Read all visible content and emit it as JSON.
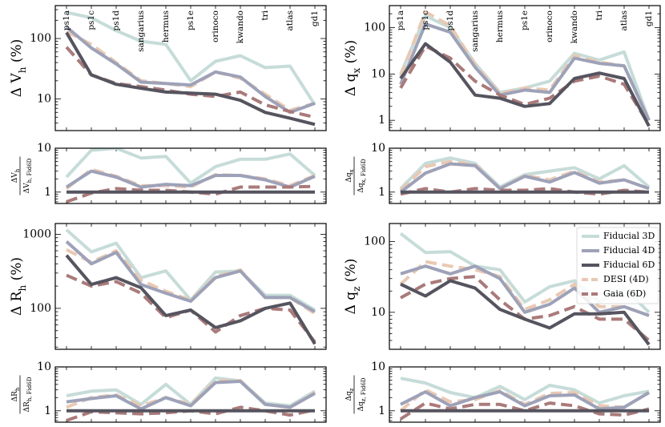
{
  "colors": {
    "Fiducial 3D": "#c6dcd9",
    "Fiducial 4D": "#9ea2b8",
    "Fiducial 6D": "#55545f",
    "DESI (4D)": "#e9c9b3",
    "Gaia (6D)": "#aa7a7a"
  },
  "legend": {
    "placement": "upper-right of bottom-right main panel",
    "entries": [
      {
        "name": "Fiducial 3D",
        "style": "solid"
      },
      {
        "name": "Fiducial 4D",
        "style": "solid"
      },
      {
        "name": "Fiducial 6D",
        "style": "solid"
      },
      {
        "name": "DESI (4D)",
        "style": "dashed"
      },
      {
        "name": "Gaia (6D)",
        "style": "dashed"
      }
    ]
  },
  "chart_data": [
    {
      "id": "Vh-main",
      "type": "line",
      "scale": "log",
      "ylim": [
        3,
        350
      ],
      "yticks": [
        {
          "value": 10,
          "label": "10"
        },
        {
          "value": 100,
          "label": "100"
        }
      ],
      "ylabel": "Δ V_h (%)",
      "categories": [
        "ps1a",
        "ps1c",
        "ps1d",
        "sangarius",
        "hermus",
        "ps1e",
        "orinoco",
        "kwando",
        "tri",
        "atlas",
        "gd1"
      ],
      "series": [
        {
          "name": "Fiducial 3D",
          "values": [
            270,
            220,
            135,
            90,
            80,
            20,
            42,
            52,
            33,
            35,
            8
          ]
        },
        {
          "name": "DESI (4D)",
          "values": [
            130,
            80,
            40,
            20,
            18,
            16,
            28,
            22,
            12,
            6.5,
            8.5
          ]
        },
        {
          "name": "Gaia (6D)",
          "values": [
            72,
            25,
            18,
            16,
            14,
            12,
            11,
            13,
            8,
            6.2,
            5
          ]
        },
        {
          "name": "Fiducial 4D",
          "values": [
            155,
            70,
            38,
            19,
            18,
            17,
            28,
            23,
            11,
            6,
            8.5
          ]
        },
        {
          "name": "Fiducial 6D",
          "values": [
            125,
            25,
            17.5,
            15,
            13,
            12.5,
            12,
            9.5,
            6,
            4.8,
            3.8
          ]
        }
      ]
    },
    {
      "id": "qx-main",
      "type": "line",
      "scale": "log",
      "ylim": [
        0.6,
        300
      ],
      "yticks": [
        {
          "value": 1,
          "label": "1"
        },
        {
          "value": 10,
          "label": "10"
        },
        {
          "value": 100,
          "label": "100"
        }
      ],
      "ylabel": "Δ q_x (%)",
      "categories": [
        "ps1a",
        "ps1c",
        "ps1d",
        "sangarius",
        "hermus",
        "ps1e",
        "orinoco",
        "kwando",
        "tri",
        "atlas",
        "gd1"
      ],
      "series": [
        {
          "name": "Fiducial 3D",
          "values": [
            10,
            180,
            100,
            17,
            4,
            5,
            7,
            28,
            20,
            30,
            1
          ]
        },
        {
          "name": "DESI (4D)",
          "values": [
            9,
            220,
            110,
            16,
            3.8,
            5,
            4.5,
            25,
            18,
            15,
            1
          ]
        },
        {
          "name": "Fiducial 4D",
          "values": [
            6,
            120,
            80,
            14,
            3.5,
            4.5,
            4,
            22,
            17,
            15,
            1
          ]
        },
        {
          "name": "Gaia (6D)",
          "values": [
            5,
            40,
            22,
            7,
            3.5,
            2.2,
            3,
            7,
            9,
            6,
            0.8
          ]
        },
        {
          "name": "Fiducial 6D",
          "values": [
            8,
            45,
            18,
            3.5,
            3,
            2,
            2.3,
            8,
            10.5,
            8,
            0.75
          ]
        }
      ]
    },
    {
      "id": "Vh-ratio",
      "type": "line",
      "scale": "log",
      "ylim": [
        0.55,
        10
      ],
      "yticks": [
        {
          "value": 1,
          "label": "1"
        },
        {
          "value": 10,
          "label": "10"
        }
      ],
      "ylabel": "ΔV_h / ΔV_h, Fid6D",
      "categories": [
        "ps1a",
        "ps1c",
        "ps1d",
        "sangarius",
        "hermus",
        "ps1e",
        "orinoco",
        "kwando",
        "tri",
        "atlas",
        "gd1"
      ],
      "series": [
        {
          "name": "Fiducial 3D",
          "values": [
            2.2,
            9,
            10,
            6,
            6.5,
            1.6,
            3.8,
            5.6,
            5.6,
            7.4,
            2.4
          ]
        },
        {
          "name": "DESI (4D)",
          "values": [
            1.2,
            3.3,
            2.3,
            1.4,
            1.4,
            1.3,
            2.5,
            2.4,
            2.0,
            1.4,
            2.4
          ]
        },
        {
          "name": "Fiducial 4D",
          "values": [
            1.3,
            3.0,
            2.2,
            1.3,
            1.5,
            1.4,
            2.4,
            2.4,
            1.9,
            1.3,
            2.3
          ]
        },
        {
          "name": "Gaia (6D)",
          "values": [
            0.6,
            0.95,
            1.2,
            1.1,
            1.1,
            1.0,
            0.9,
            1.3,
            1.3,
            1.3,
            1.35
          ]
        },
        {
          "name": "Fiducial 6D",
          "values": [
            1,
            1,
            1,
            1,
            1,
            1,
            1,
            1,
            1,
            1,
            1
          ]
        }
      ]
    },
    {
      "id": "qx-ratio",
      "type": "line",
      "scale": "log",
      "ylim": [
        0.55,
        10
      ],
      "yticks": [
        {
          "value": 1,
          "label": "1"
        },
        {
          "value": 10,
          "label": "10"
        }
      ],
      "ylabel": "Δq_x / Δq_x, Fid6D",
      "categories": [
        "ps1a",
        "ps1c",
        "ps1d",
        "sangarius",
        "hermus",
        "ps1e",
        "orinoco",
        "kwando",
        "tri",
        "atlas",
        "gd1"
      ],
      "series": [
        {
          "name": "Fiducial 3D",
          "values": [
            1.2,
            4.5,
            6,
            4.5,
            1.3,
            2.5,
            3.0,
            3.6,
            2.0,
            4.0,
            1.3
          ]
        },
        {
          "name": "DESI (4D)",
          "values": [
            1.1,
            3.8,
            5,
            4.2,
            1.2,
            2.4,
            1.9,
            3.0,
            1.7,
            1.9,
            1.2
          ]
        },
        {
          "name": "Fiducial 4D",
          "values": [
            1.0,
            2.7,
            4.4,
            4.0,
            1.2,
            2.3,
            1.7,
            2.8,
            1.6,
            1.9,
            1.2
          ]
        },
        {
          "name": "Gaia (6D)",
          "values": [
            0.9,
            1.2,
            1.0,
            1.2,
            1.1,
            1.1,
            1.2,
            1.0,
            0.9,
            1.1,
            1.0
          ]
        },
        {
          "name": "Fiducial 6D",
          "values": [
            1,
            1,
            1,
            1,
            1,
            1,
            1,
            1,
            1,
            1,
            1
          ]
        }
      ]
    },
    {
      "id": "Rh-main",
      "type": "line",
      "scale": "log",
      "ylim": [
        28,
        1400
      ],
      "yticks": [
        {
          "value": 100,
          "label": "100"
        },
        {
          "value": 1000,
          "label": "1000"
        }
      ],
      "ylabel": "Δ R_h (%)",
      "categories": [
        "ps1a",
        "ps1c",
        "ps1d",
        "sangarius",
        "hermus",
        "ps1e",
        "orinoco",
        "kwando",
        "tri",
        "atlas",
        "gd1"
      ],
      "series": [
        {
          "name": "Fiducial 3D",
          "values": [
            1150,
            580,
            760,
            260,
            320,
            130,
            310,
            320,
            150,
            150,
            95
          ]
        },
        {
          "name": "DESI (4D)",
          "values": [
            620,
            420,
            600,
            240,
            170,
            130,
            270,
            330,
            140,
            140,
            85
          ]
        },
        {
          "name": "Fiducial 4D",
          "values": [
            800,
            400,
            570,
            210,
            160,
            125,
            260,
            320,
            140,
            140,
            90
          ]
        },
        {
          "name": "Gaia (6D)",
          "values": [
            280,
            200,
            230,
            160,
            75,
            95,
            48,
            80,
            100,
            95,
            35
          ]
        },
        {
          "name": "Fiducial 6D",
          "values": [
            520,
            210,
            260,
            190,
            80,
            95,
            55,
            68,
            100,
            118,
            33
          ]
        }
      ]
    },
    {
      "id": "qz-main",
      "type": "line",
      "scale": "log",
      "ylim": [
        3,
        180
      ],
      "yticks": [
        {
          "value": 10,
          "label": "10"
        },
        {
          "value": 100,
          "label": "100"
        }
      ],
      "ylabel": "Δ q_z (%)",
      "categories": [
        "ps1a",
        "ps1c",
        "ps1d",
        "sangarius",
        "hermus",
        "ps1e",
        "orinoco",
        "kwando",
        "tri",
        "atlas",
        "gd1"
      ],
      "series": [
        {
          "name": "Fiducial 3D",
          "values": [
            130,
            70,
            72,
            45,
            40,
            14,
            23,
            28,
            14,
            22,
            10
          ]
        },
        {
          "name": "DESI (4D)",
          "values": [
            25,
            52,
            45,
            40,
            32,
            11,
            15,
            25,
            12,
            12,
            9
          ]
        },
        {
          "name": "Fiducial 4D",
          "values": [
            35,
            45,
            35,
            45,
            30,
            10,
            13,
            22,
            10,
            12,
            9
          ]
        },
        {
          "name": "Gaia (6D)",
          "values": [
            16,
            25,
            30,
            32,
            15,
            8,
            9,
            12,
            8,
            8,
            4
          ]
        },
        {
          "name": "Fiducial 6D",
          "values": [
            25,
            17,
            28,
            22,
            11,
            8,
            6,
            9.5,
            9.5,
            10,
            3.5
          ]
        }
      ]
    },
    {
      "id": "Rh-ratio",
      "type": "line",
      "scale": "log",
      "ylim": [
        0.55,
        10
      ],
      "yticks": [
        {
          "value": 1,
          "label": "1"
        },
        {
          "value": 10,
          "label": "10"
        }
      ],
      "ylabel": "ΔR_h / ΔR_h, Fid6D",
      "categories": [
        "ps1a",
        "ps1c",
        "ps1d",
        "sangarius",
        "hermus",
        "ps1e",
        "orinoco",
        "kwando",
        "tri",
        "atlas",
        "gd1"
      ],
      "series": [
        {
          "name": "Fiducial 3D",
          "values": [
            2.2,
            2.8,
            3.0,
            1.4,
            4.0,
            1.4,
            5.6,
            4.8,
            1.5,
            1.3,
            2.8
          ]
        },
        {
          "name": "DESI (4D)",
          "values": [
            1.2,
            2.0,
            2.3,
            1.3,
            2.0,
            1.4,
            4.8,
            4.9,
            1.4,
            1.2,
            2.6
          ]
        },
        {
          "name": "Fiducial 4D",
          "values": [
            1.6,
            1.9,
            2.2,
            1.1,
            2.0,
            1.3,
            4.4,
            4.7,
            1.4,
            1.2,
            2.5
          ]
        },
        {
          "name": "Gaia (6D)",
          "values": [
            0.6,
            0.95,
            0.9,
            0.85,
            0.9,
            1.0,
            0.85,
            1.2,
            1.0,
            0.8,
            1.05
          ]
        },
        {
          "name": "Fiducial 6D",
          "values": [
            1,
            1,
            1,
            1,
            1,
            1,
            1,
            1,
            1,
            1,
            1
          ]
        }
      ]
    },
    {
      "id": "qz-ratio",
      "type": "line",
      "scale": "log",
      "ylim": [
        0.55,
        10
      ],
      "yticks": [
        {
          "value": 1,
          "label": "1"
        },
        {
          "value": 10,
          "label": "10"
        }
      ],
      "ylabel": "Δq_z / Δq_z, Fid6D",
      "categories": [
        "ps1a",
        "ps1c",
        "ps1d",
        "sangarius",
        "hermus",
        "ps1e",
        "orinoco",
        "kwando",
        "tri",
        "atlas",
        "gd1"
      ],
      "series": [
        {
          "name": "Fiducial 3D",
          "values": [
            5.5,
            4.3,
            2.6,
            2.0,
            3.6,
            1.8,
            3.8,
            3.0,
            1.5,
            2.2,
            2.8
          ]
        },
        {
          "name": "DESI (4D)",
          "values": [
            1.0,
            3.0,
            1.6,
            1.8,
            2.9,
            1.4,
            2.5,
            2.6,
            1.3,
            1.2,
            2.6
          ]
        },
        {
          "name": "Fiducial 4D",
          "values": [
            1.4,
            2.7,
            1.3,
            2.0,
            2.7,
            1.3,
            2.2,
            2.3,
            1.1,
            1.2,
            2.6
          ]
        },
        {
          "name": "Gaia (6D)",
          "values": [
            0.65,
            1.5,
            1.1,
            1.4,
            1.4,
            1.0,
            1.5,
            1.3,
            0.85,
            0.8,
            1.1
          ]
        },
        {
          "name": "Fiducial 6D",
          "values": [
            1,
            1,
            1,
            1,
            1,
            1,
            1,
            1,
            1,
            1,
            1
          ]
        }
      ]
    }
  ]
}
